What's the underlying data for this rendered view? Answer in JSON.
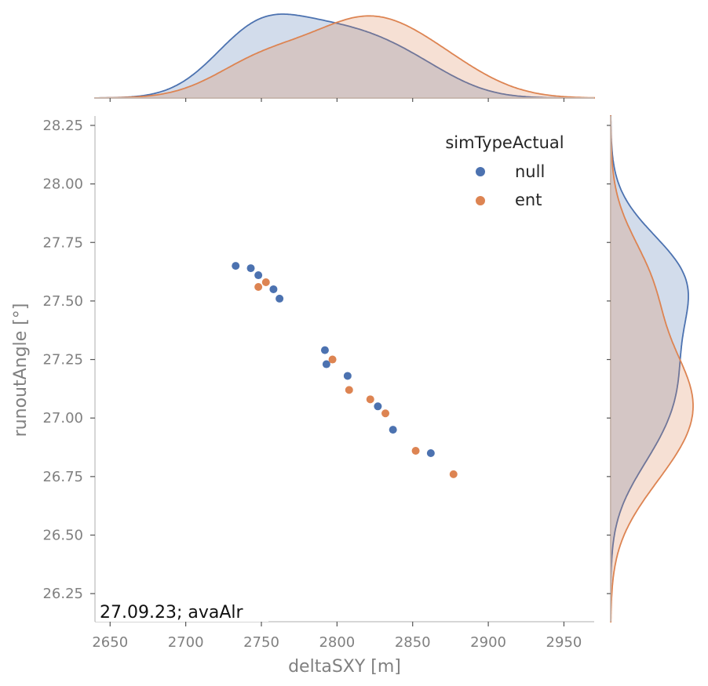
{
  "chart_data": {
    "type": "scatter",
    "xlabel": "deltaSXY [m]",
    "ylabel": "runoutAngle [°]",
    "xlim": [
      2640,
      2970
    ],
    "ylim": [
      26.13,
      28.29
    ],
    "x_ticks": [
      "2650",
      "2700",
      "2750",
      "2800",
      "2850",
      "2900",
      "2950"
    ],
    "y_ticks": [
      "26.25",
      "26.50",
      "26.75",
      "27.00",
      "27.25",
      "27.50",
      "27.75",
      "28.00",
      "28.25"
    ],
    "grid": false,
    "legend": {
      "title": "simTypeActual",
      "placement": "top-right"
    },
    "annotation": "27.09.23; avaAlr",
    "marginals": "kde",
    "series": [
      {
        "name": "null",
        "color": "#4c72b0",
        "points": [
          [
            2733,
            27.65
          ],
          [
            2743,
            27.64
          ],
          [
            2748,
            27.61
          ],
          [
            2758,
            27.55
          ],
          [
            2762,
            27.51
          ],
          [
            2792,
            27.29
          ],
          [
            2793,
            27.23
          ],
          [
            2807,
            27.18
          ],
          [
            2827,
            27.05
          ],
          [
            2837,
            26.95
          ],
          [
            2862,
            26.85
          ]
        ]
      },
      {
        "name": "ent",
        "color": "#dd8452",
        "points": [
          [
            2748,
            27.56
          ],
          [
            2753,
            27.58
          ],
          [
            2797,
            27.25
          ],
          [
            2808,
            27.12
          ],
          [
            2822,
            27.08
          ],
          [
            2832,
            27.02
          ],
          [
            2852,
            26.86
          ],
          [
            2877,
            26.76
          ]
        ]
      }
    ]
  }
}
